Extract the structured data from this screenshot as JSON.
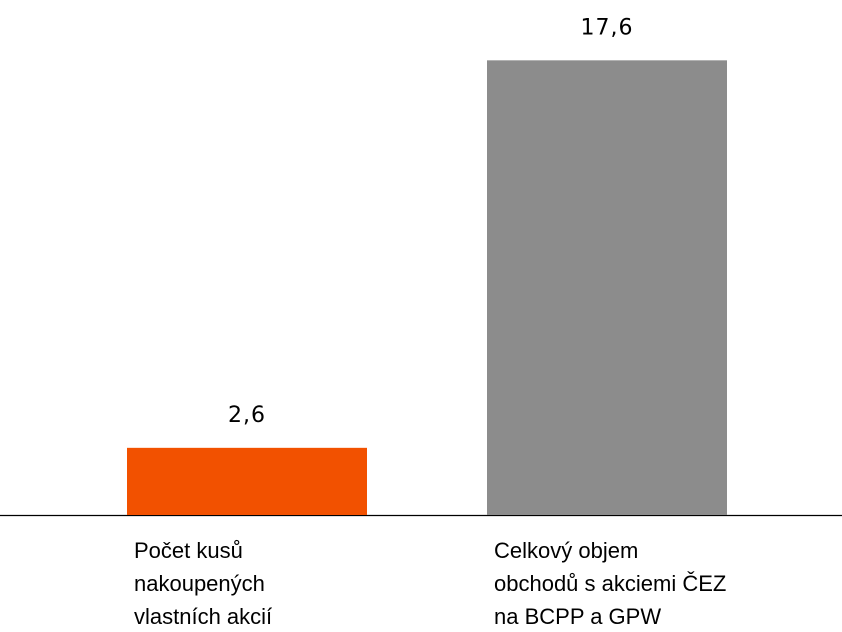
{
  "chart_data": {
    "type": "bar",
    "categories": [
      [
        "Počet kusů",
        "nakoupených",
        "vlastních akcií"
      ],
      [
        "Celkový objem",
        "obchodů s akciemi ČEZ",
        "na BCPP a GPW"
      ]
    ],
    "values": [
      2.6,
      17.6
    ],
    "value_labels": [
      "2,6",
      "17,6"
    ],
    "colors": [
      "#f25100",
      "#8c8c8c"
    ],
    "ylim": [
      0,
      18
    ]
  }
}
